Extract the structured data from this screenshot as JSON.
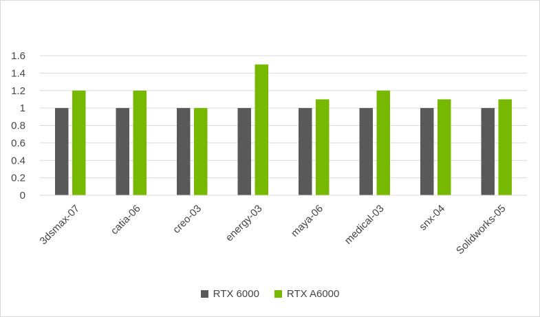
{
  "chart_data": {
    "type": "bar",
    "title": "",
    "xlabel": "",
    "ylabel": "",
    "categories": [
      "3dsmax-07",
      "catia-06",
      "creo-03",
      "energy-03",
      "maya-06",
      "medical-03",
      "snx-04",
      "Solidworks-05"
    ],
    "series": [
      {
        "name": "RTX 6000",
        "color": "#595959",
        "values": [
          1,
          1,
          1,
          1,
          1,
          1,
          1,
          1
        ]
      },
      {
        "name": "RTX A6000",
        "color": "#76b900",
        "values": [
          1.2,
          1.2,
          1,
          1.5,
          1.1,
          1.2,
          1.1,
          1.1
        ]
      }
    ],
    "ylim": [
      0,
      1.6
    ],
    "yticks": [
      "0",
      "0.2",
      "0.4",
      "0.6",
      "0.8",
      "1",
      "1.2",
      "1.4",
      "1.6"
    ],
    "grid": true,
    "legend_position": "bottom"
  }
}
